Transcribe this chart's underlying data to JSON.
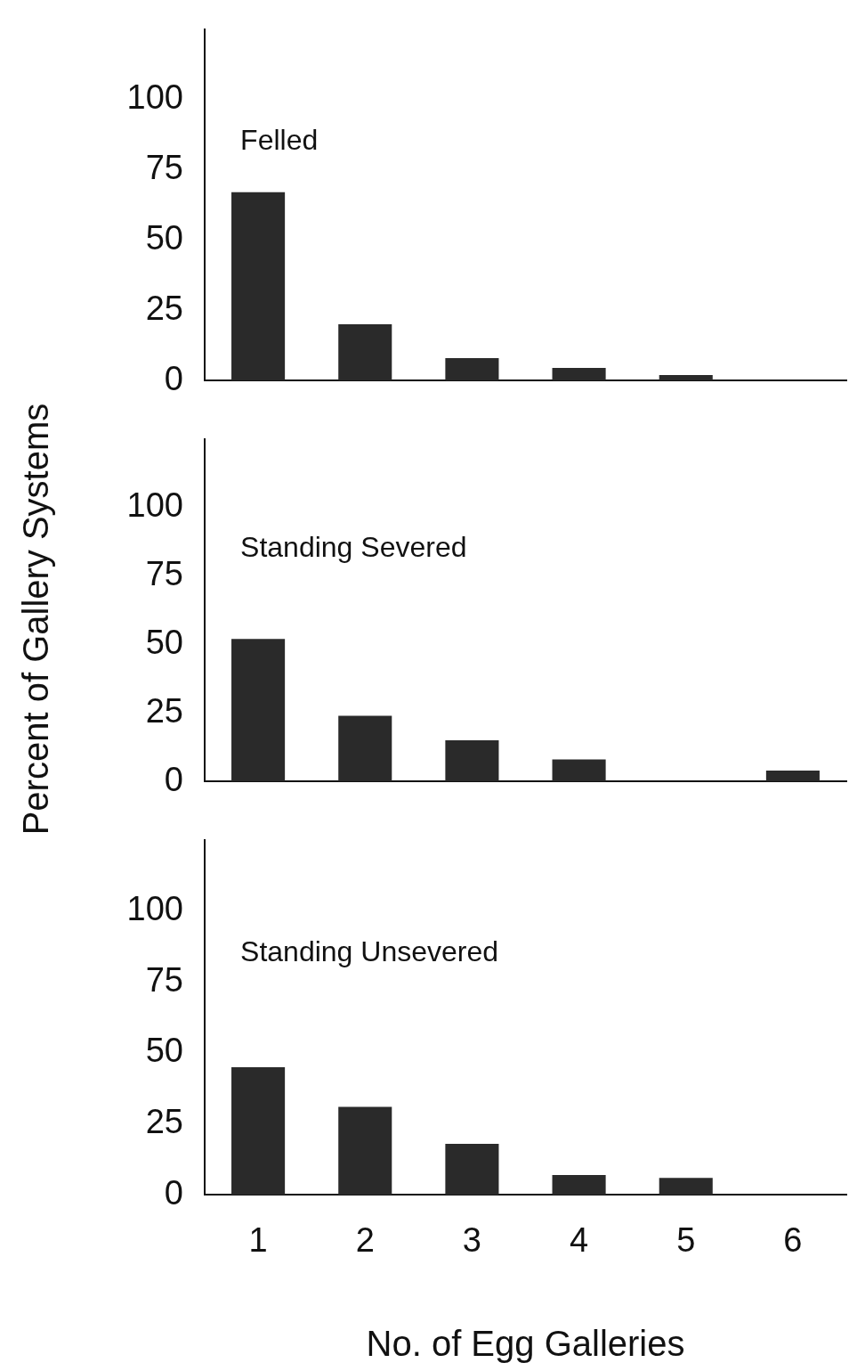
{
  "chart_data": [
    {
      "type": "bar",
      "title": "Felled",
      "categories": [
        "1",
        "2",
        "3",
        "4",
        "5",
        "6"
      ],
      "values": [
        67,
        20,
        8,
        4.5,
        2,
        0
      ],
      "color": "#2a2a2a",
      "ylim": [
        0,
        125
      ],
      "yticks": [
        0,
        25,
        50,
        75,
        100
      ],
      "tick_labels": "y",
      "grid": false,
      "legend": false
    },
    {
      "type": "bar",
      "title": "Standing Severed",
      "ylabel": "Percent of Gallery Systems",
      "categories": [
        "1",
        "2",
        "3",
        "4",
        "5",
        "6"
      ],
      "values": [
        52,
        24,
        15,
        8,
        0,
        4
      ],
      "color": "#2a2a2a",
      "ylim": [
        0,
        125
      ],
      "yticks": [
        0,
        25,
        50,
        75,
        100
      ],
      "tick_labels": "y",
      "grid": false,
      "legend": false
    },
    {
      "type": "bar",
      "title": "Standing Unsevered",
      "xlabel": "No. of Egg Galleries",
      "categories": [
        "1",
        "2",
        "3",
        "4",
        "5",
        "6"
      ],
      "values": [
        45,
        31,
        18,
        7,
        6,
        0
      ],
      "color": "#2a2a2a",
      "ylim": [
        0,
        125
      ],
      "yticks": [
        0,
        25,
        50,
        75,
        100
      ],
      "grid": false,
      "legend": false
    }
  ]
}
